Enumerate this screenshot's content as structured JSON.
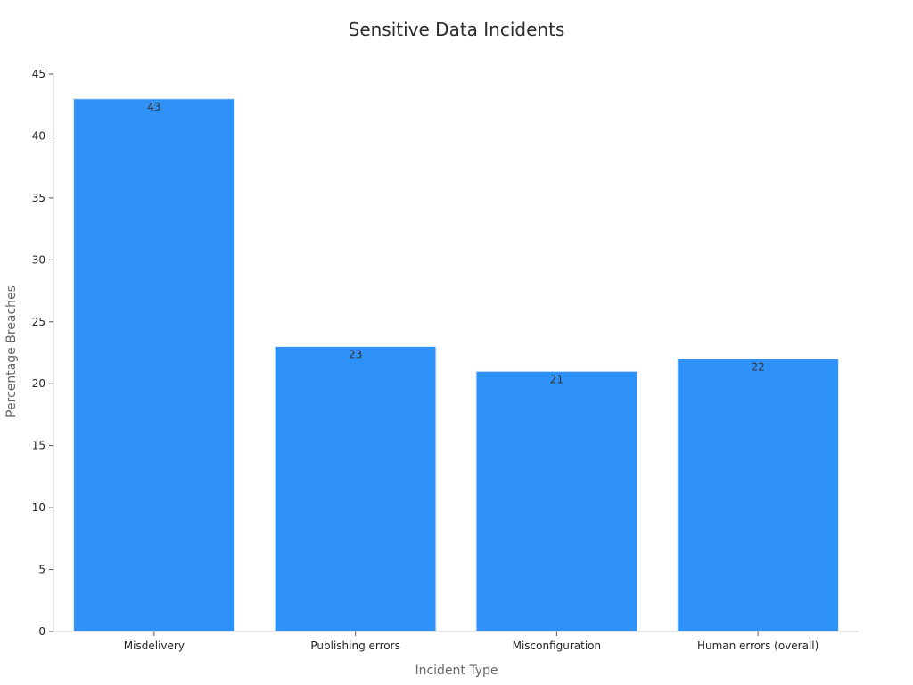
{
  "chart_data": {
    "type": "bar",
    "title": "Sensitive Data Incidents",
    "xlabel": "Incident Type",
    "ylabel": "Percentage Breaches",
    "categories": [
      "Misdelivery",
      "Publishing errors",
      "Misconfiguration",
      "Human errors (overall)"
    ],
    "values": [
      43,
      23,
      21,
      22
    ],
    "data_labels": [
      "43",
      "23",
      "21",
      "22"
    ],
    "ylim": [
      0,
      45
    ],
    "yticks": [
      0,
      5,
      10,
      15,
      20,
      25,
      30,
      35,
      40,
      45
    ],
    "ytick_labels": [
      "0",
      "5",
      "10",
      "15",
      "20",
      "25",
      "30",
      "35",
      "40",
      "45"
    ],
    "grid": false,
    "legend": "none",
    "bar_color": "#2e91f8"
  }
}
